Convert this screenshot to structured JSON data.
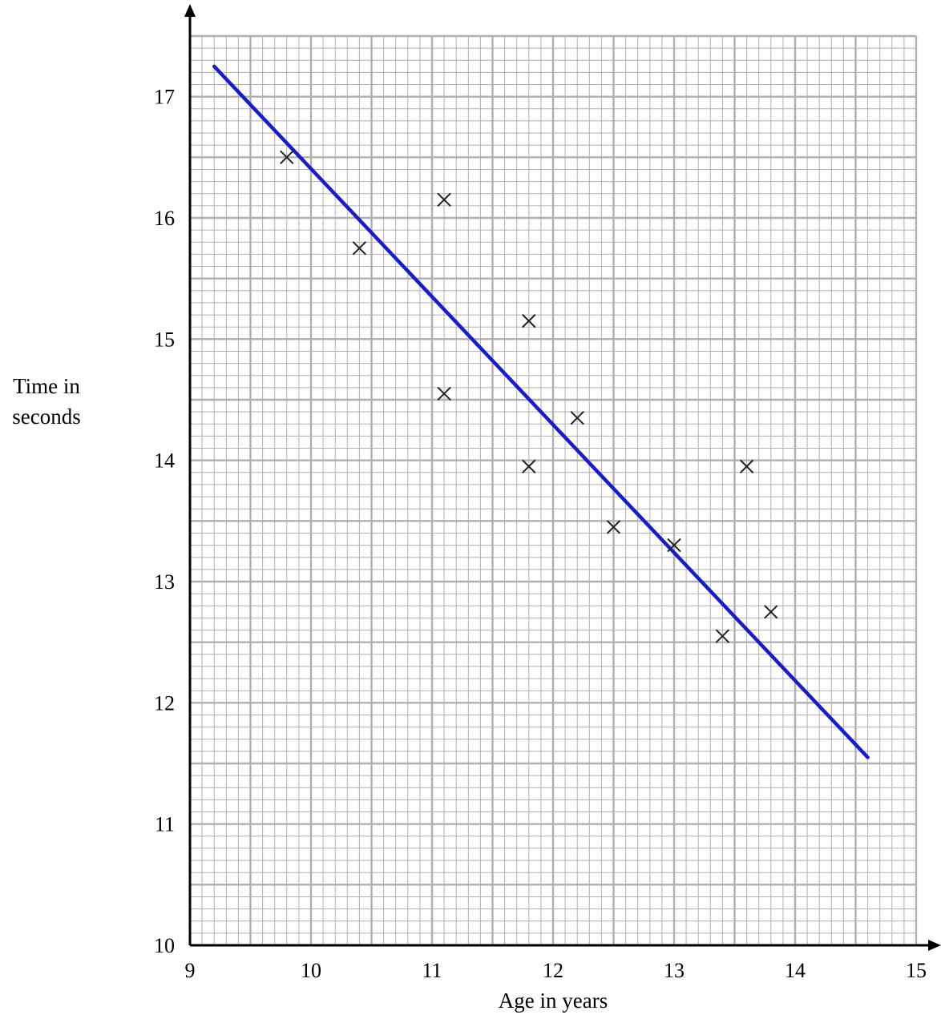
{
  "chart_data": {
    "type": "scatter",
    "title": "",
    "xlabel": "Age in years",
    "ylabel_lines": [
      "Time in",
      "seconds"
    ],
    "xlim": [
      9,
      15
    ],
    "ylim": [
      10,
      17.5
    ],
    "x_ticks": [
      9,
      10,
      11,
      12,
      13,
      14,
      15
    ],
    "y_ticks": [
      10,
      11,
      12,
      13,
      14,
      15,
      16,
      17
    ],
    "grid": true,
    "grid_minor_step": 0.1,
    "grid_major_step": 0.5,
    "legend": "none",
    "marker": "cross",
    "points": [
      {
        "x": 9.8,
        "y": 16.5
      },
      {
        "x": 10.4,
        "y": 15.75
      },
      {
        "x": 11.1,
        "y": 16.15
      },
      {
        "x": 11.8,
        "y": 15.15
      },
      {
        "x": 11.1,
        "y": 14.55
      },
      {
        "x": 12.2,
        "y": 14.35
      },
      {
        "x": 11.8,
        "y": 13.95
      },
      {
        "x": 12.5,
        "y": 13.45
      },
      {
        "x": 13.0,
        "y": 13.3
      },
      {
        "x": 13.6,
        "y": 13.95
      },
      {
        "x": 13.8,
        "y": 12.75
      },
      {
        "x": 13.4,
        "y": 12.55
      }
    ],
    "line_of_best_fit": {
      "x1": 9.2,
      "y1": 17.25,
      "x2": 14.6,
      "y2": 11.55,
      "color": "#1a1ad0"
    },
    "grid_color": "#b0b0b0",
    "marker_color": "#222222"
  }
}
